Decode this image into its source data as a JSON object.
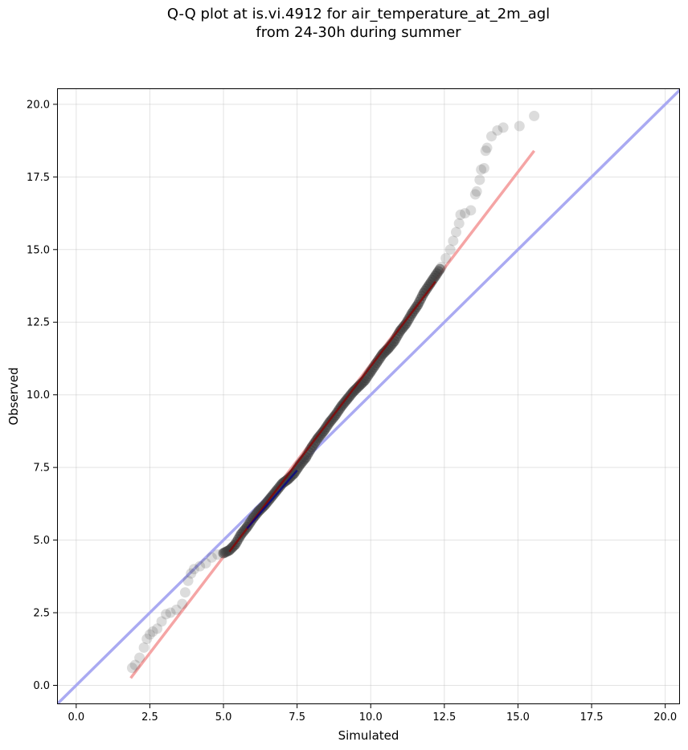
{
  "title": {
    "line1": "Q-Q plot at is.vi.4912 for air_temperature_at_2m_agl",
    "line2": "from 24-30h during summer"
  },
  "chart_data": {
    "type": "scatter",
    "xlabel": "Simulated",
    "ylabel": "Observed",
    "xlim": [
      -0.65,
      20.5
    ],
    "ylim": [
      -0.65,
      20.55
    ],
    "xticks": [
      0.0,
      2.5,
      5.0,
      7.5,
      10.0,
      12.5,
      15.0,
      17.5,
      20.0
    ],
    "yticks": [
      0.0,
      2.5,
      5.0,
      7.5,
      10.0,
      12.5,
      15.0,
      17.5,
      20.0
    ],
    "xtick_labels": [
      "0.0",
      "2.5",
      "5.0",
      "7.5",
      "10.0",
      "12.5",
      "15.0",
      "17.5",
      "20.0"
    ],
    "ytick_labels": [
      "0.0",
      "2.5",
      "5.0",
      "7.5",
      "10.0",
      "12.5",
      "15.0",
      "17.5",
      "20.0"
    ],
    "grid": true,
    "identity_line": {
      "from": [
        -0.65,
        -0.65
      ],
      "to": [
        20.5,
        20.5
      ],
      "color": "#aaaaf2"
    },
    "fit_line": {
      "from": [
        1.85,
        0.25
      ],
      "to": [
        15.55,
        18.4
      ],
      "color": "#f5a5a5"
    },
    "central_fit_segments": [
      {
        "from": [
          5.2,
          4.6
        ],
        "to": [
          12.2,
          13.9
        ],
        "color": "#8b0000"
      },
      {
        "from": [
          5.8,
          5.4
        ],
        "to": [
          7.5,
          7.4
        ],
        "color": "#00008b"
      }
    ],
    "point_color": "#3c3c3c",
    "quantiles": [
      {
        "x": 1.9,
        "y": 0.6
      },
      {
        "x": 2.0,
        "y": 0.7
      },
      {
        "x": 2.15,
        "y": 0.95
      },
      {
        "x": 2.3,
        "y": 1.3
      },
      {
        "x": 2.4,
        "y": 1.6
      },
      {
        "x": 2.5,
        "y": 1.75
      },
      {
        "x": 2.6,
        "y": 1.85
      },
      {
        "x": 2.75,
        "y": 1.95
      },
      {
        "x": 2.9,
        "y": 2.2
      },
      {
        "x": 3.05,
        "y": 2.45
      },
      {
        "x": 3.2,
        "y": 2.5
      },
      {
        "x": 3.4,
        "y": 2.6
      },
      {
        "x": 3.6,
        "y": 2.8
      },
      {
        "x": 3.7,
        "y": 3.2
      },
      {
        "x": 3.8,
        "y": 3.6
      },
      {
        "x": 3.9,
        "y": 3.85
      },
      {
        "x": 4.0,
        "y": 4.0
      },
      {
        "x": 4.2,
        "y": 4.1
      },
      {
        "x": 4.4,
        "y": 4.2
      },
      {
        "x": 4.6,
        "y": 4.4
      },
      {
        "x": 4.8,
        "y": 4.5
      },
      {
        "x": 5.0,
        "y": 4.55
      },
      {
        "x": 5.2,
        "y": 4.65
      },
      {
        "x": 5.4,
        "y": 4.85
      },
      {
        "x": 5.6,
        "y": 5.2
      },
      {
        "x": 5.8,
        "y": 5.45
      },
      {
        "x": 6.0,
        "y": 5.75
      },
      {
        "x": 6.2,
        "y": 6.0
      },
      {
        "x": 6.4,
        "y": 6.2
      },
      {
        "x": 6.6,
        "y": 6.45
      },
      {
        "x": 6.8,
        "y": 6.7
      },
      {
        "x": 7.0,
        "y": 6.95
      },
      {
        "x": 7.2,
        "y": 7.1
      },
      {
        "x": 7.4,
        "y": 7.3
      },
      {
        "x": 7.6,
        "y": 7.6
      },
      {
        "x": 7.8,
        "y": 7.85
      },
      {
        "x": 8.0,
        "y": 8.2
      },
      {
        "x": 8.2,
        "y": 8.5
      },
      {
        "x": 8.4,
        "y": 8.75
      },
      {
        "x": 8.6,
        "y": 9.05
      },
      {
        "x": 8.8,
        "y": 9.3
      },
      {
        "x": 9.0,
        "y": 9.6
      },
      {
        "x": 9.2,
        "y": 9.85
      },
      {
        "x": 9.4,
        "y": 10.1
      },
      {
        "x": 9.6,
        "y": 10.3
      },
      {
        "x": 9.8,
        "y": 10.5
      },
      {
        "x": 10.0,
        "y": 10.8
      },
      {
        "x": 10.2,
        "y": 11.1
      },
      {
        "x": 10.4,
        "y": 11.4
      },
      {
        "x": 10.6,
        "y": 11.6
      },
      {
        "x": 10.8,
        "y": 11.85
      },
      {
        "x": 11.0,
        "y": 12.2
      },
      {
        "x": 11.2,
        "y": 12.45
      },
      {
        "x": 11.4,
        "y": 12.8
      },
      {
        "x": 11.6,
        "y": 13.1
      },
      {
        "x": 11.8,
        "y": 13.5
      },
      {
        "x": 12.0,
        "y": 13.8
      },
      {
        "x": 12.2,
        "y": 14.1
      },
      {
        "x": 12.4,
        "y": 14.4
      },
      {
        "x": 12.55,
        "y": 14.7
      },
      {
        "x": 12.7,
        "y": 15.0
      },
      {
        "x": 12.8,
        "y": 15.3
      },
      {
        "x": 12.9,
        "y": 15.6
      },
      {
        "x": 13.0,
        "y": 15.9
      },
      {
        "x": 13.05,
        "y": 16.2
      },
      {
        "x": 13.2,
        "y": 16.25
      },
      {
        "x": 13.4,
        "y": 16.35
      },
      {
        "x": 13.55,
        "y": 16.9
      },
      {
        "x": 13.6,
        "y": 17.0
      },
      {
        "x": 13.7,
        "y": 17.4
      },
      {
        "x": 13.75,
        "y": 17.75
      },
      {
        "x": 13.85,
        "y": 17.8
      },
      {
        "x": 13.9,
        "y": 18.4
      },
      {
        "x": 13.95,
        "y": 18.5
      },
      {
        "x": 14.1,
        "y": 18.9
      },
      {
        "x": 14.3,
        "y": 19.1
      },
      {
        "x": 14.5,
        "y": 19.2
      },
      {
        "x": 15.05,
        "y": 19.25
      },
      {
        "x": 15.55,
        "y": 19.6
      }
    ]
  }
}
